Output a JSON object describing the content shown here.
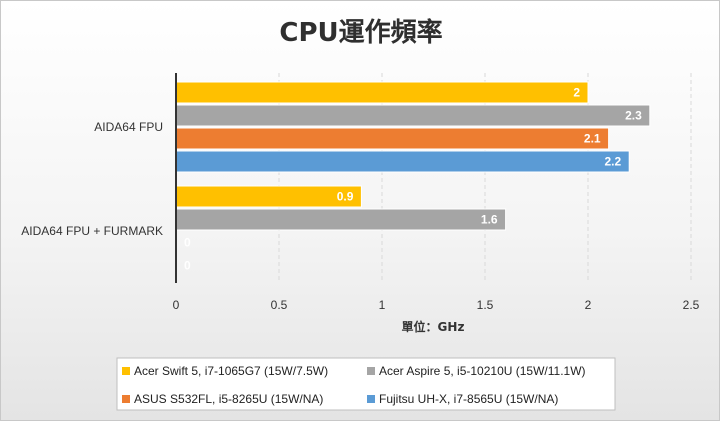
{
  "colors": {
    "series_1": "#ffc000",
    "series_2": "#a5a5a5",
    "series_3": "#ed7d31",
    "series_4": "#5b9bd5",
    "gridline": "#d9d9d9",
    "axis_line": "#333333"
  },
  "chart_data": {
    "type": "bar",
    "orientation": "horizontal",
    "title": "CPU運作頻率",
    "xlabel": "單位：GHz",
    "ylabel": "",
    "xlim": [
      0,
      2.5
    ],
    "ticks": [
      "0",
      "0.5",
      "1",
      "1.5",
      "2",
      "2.5"
    ],
    "tick_values": [
      0,
      0.5,
      1,
      1.5,
      2,
      2.5
    ],
    "grid": true,
    "legend_position": "bottom",
    "categories": [
      "AIDA64 FPU",
      "AIDA64 FPU + FURMARK"
    ],
    "series": [
      {
        "name": "Acer Swift 5, i7-1065G7 (15W/7.5W)",
        "values": [
          2,
          0.9
        ],
        "labels": [
          "2",
          "0.9"
        ]
      },
      {
        "name": "Acer Aspire 5, i5-10210U (15W/11.1W)",
        "values": [
          2.3,
          1.6
        ],
        "labels": [
          "2.3",
          "1.6"
        ]
      },
      {
        "name": "ASUS S532FL, i5-8265U (15W/NA)",
        "values": [
          2.1,
          0
        ],
        "labels": [
          "2.1",
          "0"
        ]
      },
      {
        "name": "Fujitsu UH-X, i7-8565U (15W/NA)",
        "values": [
          2.2,
          0
        ],
        "labels": [
          "2.2",
          "0"
        ]
      }
    ]
  }
}
